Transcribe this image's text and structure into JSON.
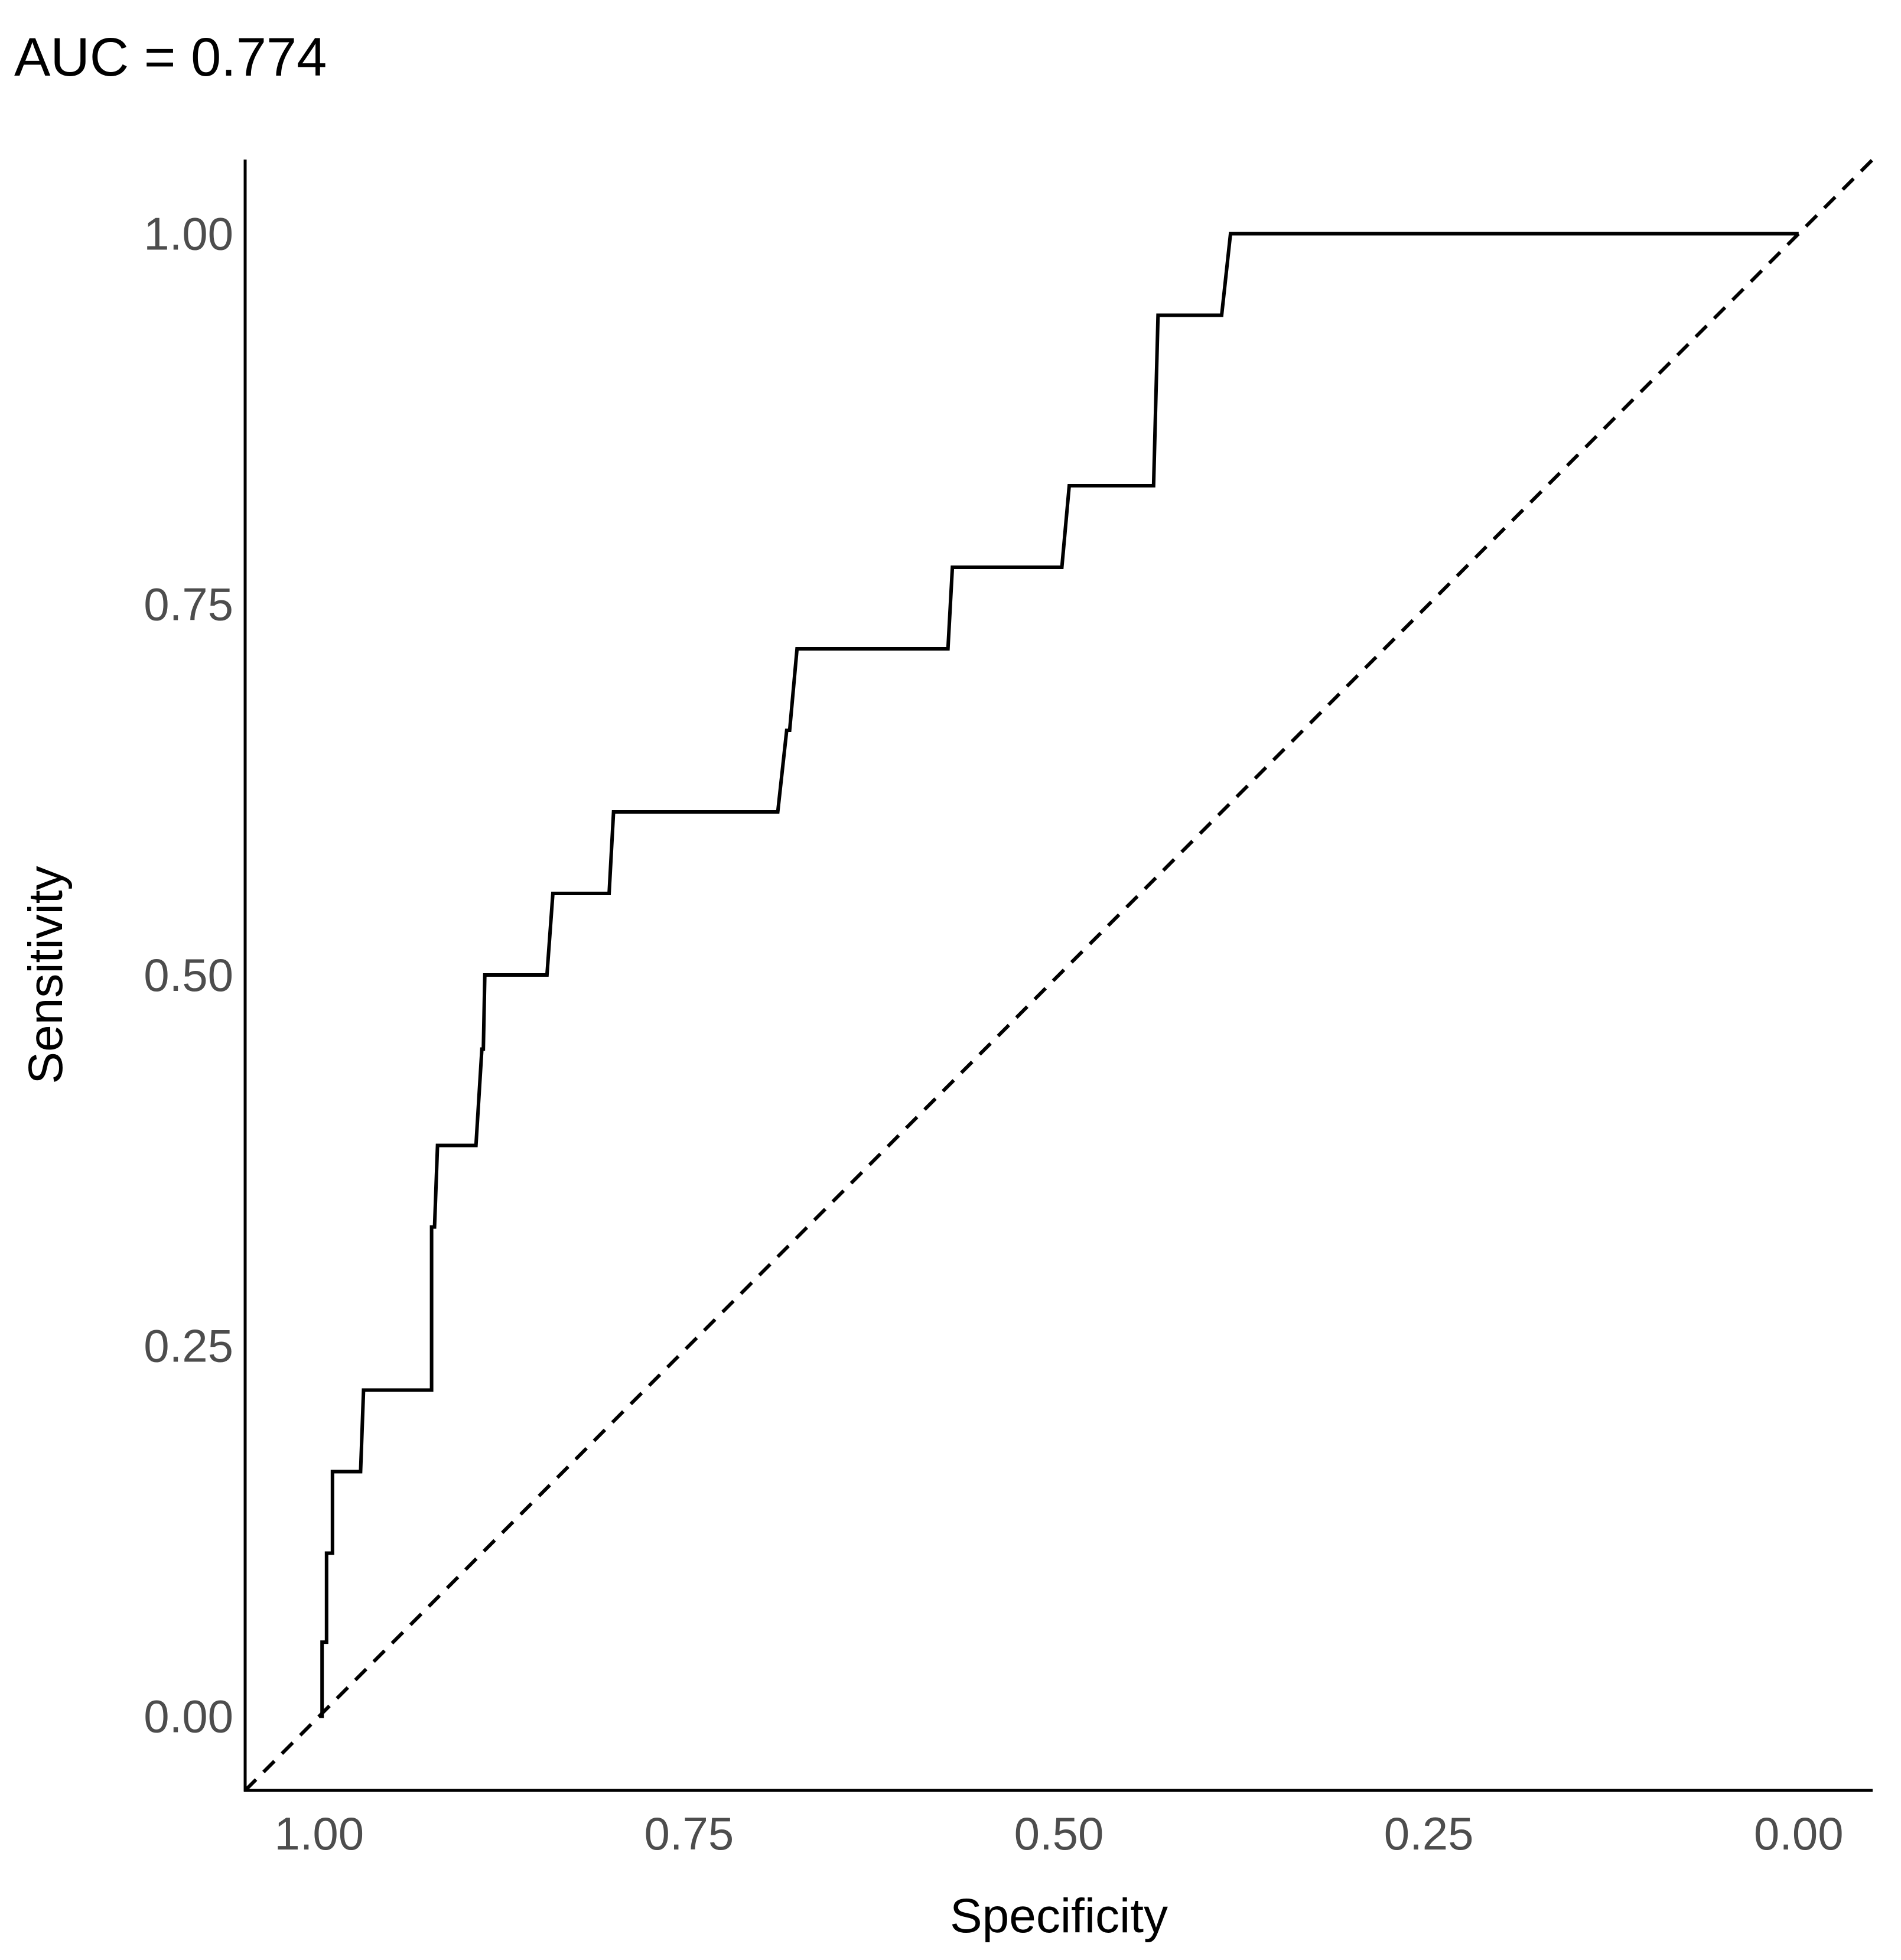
{
  "chart_data": {
    "type": "line",
    "title": "AUC = 0.774",
    "xlabel": "Specificity",
    "ylabel": "Sensitivity",
    "x_reversed": true,
    "xlim": [
      1.05,
      -0.05
    ],
    "ylim": [
      -0.05,
      1.05
    ],
    "x_ticks": [
      1.0,
      0.75,
      0.5,
      0.25,
      0.0
    ],
    "x_tick_labels": [
      "1.00",
      "0.75",
      "0.50",
      "0.25",
      "0.00"
    ],
    "y_ticks": [
      0.0,
      0.25,
      0.5,
      0.75,
      1.0
    ],
    "y_tick_labels": [
      "0.00",
      "0.25",
      "0.50",
      "0.75",
      "1.00"
    ],
    "grid": false,
    "colors": {
      "curve": "#000000",
      "reference": "#000000",
      "tick_text": "#4d4d4d"
    },
    "series": [
      {
        "style": "solid",
        "x": [
          1.0,
          0.998,
          0.998,
          0.995,
          0.995,
          0.991,
          0.991,
          0.972,
          0.97,
          0.924,
          0.924,
          0.922,
          0.92,
          0.894,
          0.89,
          0.889,
          0.888,
          0.846,
          0.842,
          0.804,
          0.801,
          0.69,
          0.684,
          0.682,
          0.677,
          0.575,
          0.572,
          0.498,
          0.493,
          0.436,
          0.433,
          0.39,
          0.384,
          0.0
        ],
        "y": [
          0.0,
          0.0,
          0.05,
          0.05,
          0.11,
          0.11,
          0.165,
          0.165,
          0.22,
          0.22,
          0.33,
          0.33,
          0.385,
          0.385,
          0.45,
          0.45,
          0.5,
          0.5,
          0.555,
          0.555,
          0.61,
          0.61,
          0.665,
          0.665,
          0.72,
          0.72,
          0.775,
          0.775,
          0.83,
          0.83,
          0.945,
          0.945,
          1.0,
          1.0
        ]
      },
      {
        "style": "dashed",
        "x": [
          1.05,
          -0.05
        ],
        "y": [
          -0.05,
          1.05
        ]
      }
    ]
  }
}
